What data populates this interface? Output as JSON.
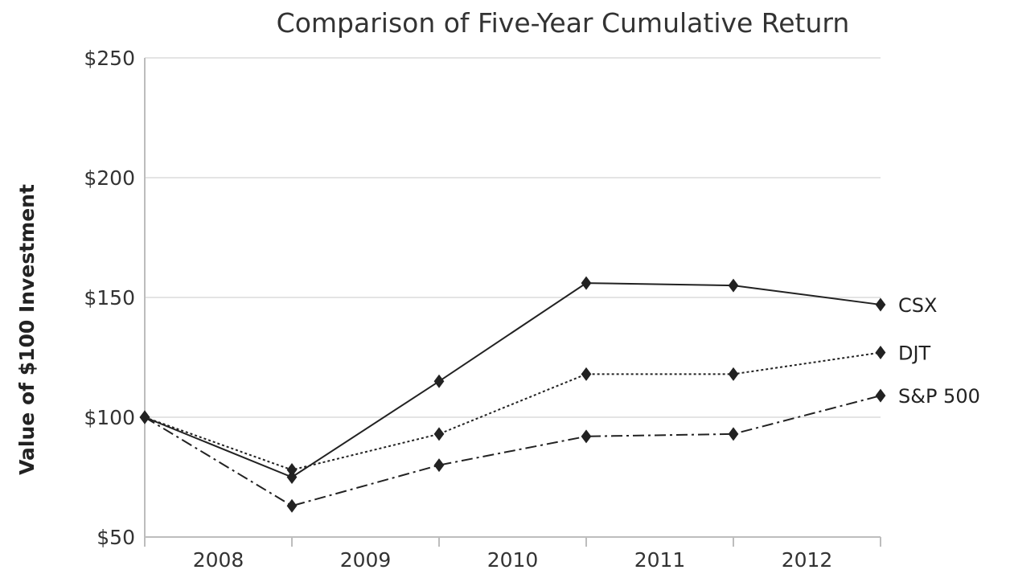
{
  "chart_data": {
    "type": "line",
    "title": "Comparison of Five-Year Cumulative Return",
    "xlabel": "",
    "ylabel": "Value of $100 Investment",
    "x_tick_labels": [
      "2008",
      "2009",
      "2010",
      "2011",
      "2012"
    ],
    "x": [
      2007.5,
      2008.5,
      2009.5,
      2010.5,
      2011.5,
      2012.5
    ],
    "ylim": [
      50,
      250
    ],
    "y_ticks": [
      50,
      100,
      150,
      200,
      250
    ],
    "y_tick_labels": [
      "$50",
      "$100",
      "$150",
      "$200",
      "$250"
    ],
    "grid": true,
    "series": [
      {
        "name": "CSX",
        "values": [
          100,
          75,
          115,
          156,
          155,
          147
        ],
        "line_style": "solid"
      },
      {
        "name": "DJT",
        "values": [
          100,
          78,
          93,
          118,
          118,
          127
        ],
        "line_style": "dotted"
      },
      {
        "name": "S&P 500",
        "values": [
          100,
          63,
          80,
          92,
          93,
          109
        ],
        "line_style": "dash-dot"
      }
    ],
    "line_color": "#222222",
    "grid_color": "#dcdcdc"
  }
}
